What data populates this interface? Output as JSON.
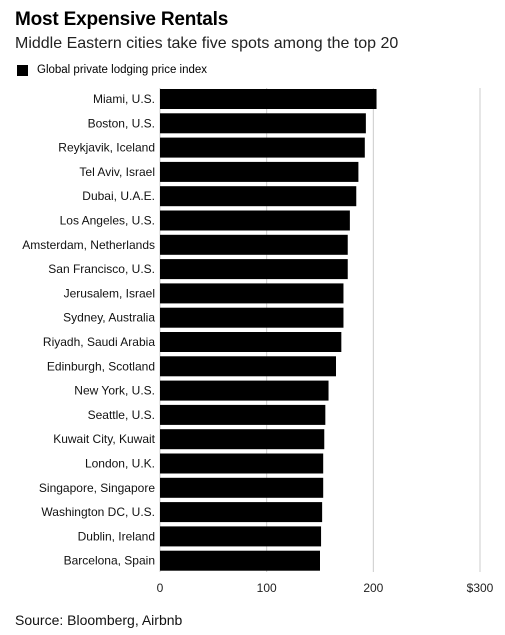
{
  "header": {
    "title": "Most Expensive Rentals",
    "subtitle": "Middle Eastern cities take five spots among the top 20"
  },
  "legend": {
    "label": "Global private lodging price index"
  },
  "footer": {
    "source": "Source: Bloomberg, Airbnb"
  },
  "colors": {
    "bar": "#000000",
    "grid": "#cccccc"
  },
  "chart_data": {
    "type": "bar",
    "orientation": "horizontal",
    "title": "Most Expensive Rentals",
    "subtitle": "Middle Eastern cities take five spots among the top 20",
    "xlabel": "",
    "ylabel": "",
    "xlim": [
      0,
      300
    ],
    "x_ticks": [
      0,
      100,
      200,
      300
    ],
    "x_tick_labels": [
      "0",
      "100",
      "200",
      "$300"
    ],
    "grid": true,
    "legend_position": "top-left",
    "categories": [
      "Miami, U.S.",
      "Boston, U.S.",
      "Reykjavik, Iceland",
      "Tel Aviv, Israel",
      "Dubai, U.A.E.",
      "Los Angeles, U.S.",
      "Amsterdam, Netherlands",
      "San Francisco, U.S.",
      "Jerusalem, Israel",
      "Sydney, Australia",
      "Riyadh, Saudi Arabia",
      "Edinburgh, Scotland",
      "New York, U.S.",
      "Seattle, U.S.",
      "Kuwait City, Kuwait",
      "London, U.K.",
      "Singapore, Singapore",
      "Washington DC, U.S.",
      "Dublin, Ireland",
      "Barcelona, Spain"
    ],
    "series": [
      {
        "name": "Global private lodging price index",
        "values": [
          203,
          193,
          192,
          186,
          184,
          178,
          176,
          176,
          172,
          172,
          170,
          165,
          158,
          155,
          154,
          153,
          153,
          152,
          151,
          150
        ]
      }
    ]
  }
}
